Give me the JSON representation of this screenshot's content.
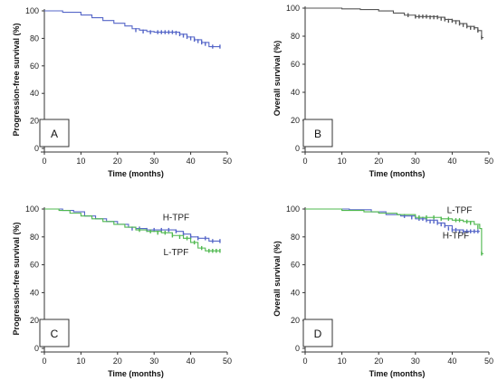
{
  "chart_data": [
    {
      "panel": "A",
      "type": "line",
      "step": true,
      "xlabel": "Time (months)",
      "ylabel": "Progression-free survival (%)",
      "xlim": [
        0,
        50
      ],
      "ylim": [
        0,
        100
      ],
      "xticks": [
        0,
        10,
        20,
        30,
        40,
        50
      ],
      "yticks": [
        0,
        20,
        40,
        60,
        80,
        100
      ],
      "grid": false,
      "annotations": [],
      "series": [
        {
          "name": "",
          "color": "#5566c8",
          "points": [
            [
              0,
              100
            ],
            [
              5,
              99
            ],
            [
              10,
              97
            ],
            [
              13,
              95
            ],
            [
              16,
              93
            ],
            [
              19,
              91
            ],
            [
              22,
              89
            ],
            [
              24,
              87
            ],
            [
              26,
              86
            ],
            [
              28,
              85
            ],
            [
              30,
              84.5
            ],
            [
              35,
              84.5
            ],
            [
              37,
              83
            ],
            [
              39,
              81
            ],
            [
              41,
              79
            ],
            [
              43,
              77
            ],
            [
              45,
              74
            ],
            [
              48,
              74
            ]
          ],
          "censored": [
            [
              25,
              86
            ],
            [
              27,
              85
            ],
            [
              29,
              84.5
            ],
            [
              31,
              84.5
            ],
            [
              32,
              84.5
            ],
            [
              33,
              84.5
            ],
            [
              34,
              84.5
            ],
            [
              35,
              84.5
            ],
            [
              36,
              84
            ],
            [
              37,
              83
            ],
            [
              38,
              82
            ],
            [
              39,
              81
            ],
            [
              40,
              80
            ],
            [
              41,
              79
            ],
            [
              42,
              78
            ],
            [
              43,
              77
            ],
            [
              44,
              76
            ],
            [
              46,
              74
            ],
            [
              48,
              74
            ]
          ]
        }
      ]
    },
    {
      "panel": "B",
      "type": "line",
      "step": true,
      "xlabel": "Time (months)",
      "ylabel": "Overall survival (%)",
      "xlim": [
        0,
        50
      ],
      "ylim": [
        0,
        100
      ],
      "xticks": [
        0,
        10,
        20,
        30,
        40,
        50
      ],
      "yticks": [
        0,
        20,
        40,
        60,
        80,
        100
      ],
      "grid": false,
      "annotations": [],
      "series": [
        {
          "name": "",
          "color": "#555555",
          "points": [
            [
              0,
              100
            ],
            [
              10,
              99.5
            ],
            [
              15,
              99
            ],
            [
              20,
              98
            ],
            [
              24,
              96.5
            ],
            [
              27,
              95
            ],
            [
              30,
              94
            ],
            [
              36,
              93.5
            ],
            [
              38,
              92
            ],
            [
              40,
              91
            ],
            [
              42,
              89
            ],
            [
              44,
              87
            ],
            [
              46,
              86
            ],
            [
              47,
              84
            ],
            [
              48,
              79
            ],
            [
              48.5,
              79
            ]
          ],
          "censored": [
            [
              28,
              95
            ],
            [
              30,
              94
            ],
            [
              31,
              94
            ],
            [
              32,
              94
            ],
            [
              33,
              94
            ],
            [
              34,
              93.5
            ],
            [
              35,
              93.5
            ],
            [
              36,
              93.5
            ],
            [
              37,
              92.5
            ],
            [
              38,
              92
            ],
            [
              39,
              91
            ],
            [
              40,
              91
            ],
            [
              41,
              90
            ],
            [
              42,
              89
            ],
            [
              43,
              88
            ],
            [
              44,
              87
            ],
            [
              45,
              86
            ],
            [
              46,
              86
            ],
            [
              47,
              84
            ],
            [
              48,
              79
            ]
          ]
        }
      ]
    },
    {
      "panel": "C",
      "type": "line",
      "step": true,
      "xlabel": "Time (months)",
      "ylabel": "Progression-free survival (%)",
      "xlim": [
        0,
        50
      ],
      "ylim": [
        0,
        100
      ],
      "xticks": [
        0,
        10,
        20,
        30,
        40,
        50
      ],
      "yticks": [
        0,
        20,
        40,
        60,
        80,
        100
      ],
      "grid": false,
      "annotations": [
        {
          "text": "H-TPF",
          "x": 36,
          "y": 92
        },
        {
          "text": "L-TPF",
          "x": 36,
          "y": 67
        }
      ],
      "series": [
        {
          "name": "H-TPF",
          "color": "#5566c8",
          "points": [
            [
              0,
              100
            ],
            [
              5,
              99
            ],
            [
              8,
              98
            ],
            [
              11,
              95
            ],
            [
              14,
              93
            ],
            [
              17,
              91
            ],
            [
              20,
              89
            ],
            [
              23,
              87
            ],
            [
              25,
              86
            ],
            [
              28,
              85
            ],
            [
              33,
              85
            ],
            [
              36,
              84
            ],
            [
              38,
              82
            ],
            [
              40,
              80
            ],
            [
              42,
              79
            ],
            [
              45,
              77
            ],
            [
              48,
              77
            ]
          ],
          "censored": [
            [
              24,
              86
            ],
            [
              26,
              86
            ],
            [
              28,
              85
            ],
            [
              30,
              85
            ],
            [
              32,
              85
            ],
            [
              34,
              85
            ],
            [
              36,
              84
            ],
            [
              38,
              82
            ],
            [
              40,
              80
            ],
            [
              42,
              79
            ],
            [
              44,
              79
            ],
            [
              46,
              77
            ],
            [
              48,
              77
            ]
          ]
        },
        {
          "name": "L-TPF",
          "color": "#4fb84f",
          "points": [
            [
              0,
              100
            ],
            [
              4,
              99
            ],
            [
              7,
              97
            ],
            [
              10,
              95
            ],
            [
              13,
              93
            ],
            [
              16,
              91
            ],
            [
              19,
              89
            ],
            [
              22,
              87
            ],
            [
              25,
              85
            ],
            [
              28,
              84
            ],
            [
              32,
              83
            ],
            [
              35,
              81
            ],
            [
              38,
              79
            ],
            [
              40,
              76
            ],
            [
              42,
              72
            ],
            [
              44,
              70
            ],
            [
              48,
              70
            ]
          ],
          "censored": [
            [
              26,
              85
            ],
            [
              29,
              84
            ],
            [
              31,
              83
            ],
            [
              33,
              83
            ],
            [
              35,
              81
            ],
            [
              37,
              80
            ],
            [
              39,
              79
            ],
            [
              41,
              76
            ],
            [
              43,
              72
            ],
            [
              45,
              70
            ],
            [
              46,
              70
            ],
            [
              47,
              70
            ],
            [
              48,
              70
            ]
          ]
        }
      ]
    },
    {
      "panel": "D",
      "type": "line",
      "step": true,
      "xlabel": "Time (months)",
      "ylabel": "Overall survival (%)",
      "xlim": [
        0,
        50
      ],
      "ylim": [
        0,
        100
      ],
      "xticks": [
        0,
        10,
        20,
        30,
        40,
        50
      ],
      "yticks": [
        0,
        20,
        40,
        60,
        80,
        100
      ],
      "grid": false,
      "annotations": [
        {
          "text": "L-TPF",
          "x": 42,
          "y": 97
        },
        {
          "text": "H-TPF",
          "x": 41,
          "y": 79
        }
      ],
      "series": [
        {
          "name": "H-TPF",
          "color": "#5566c8",
          "points": [
            [
              0,
              100
            ],
            [
              12,
              99.5
            ],
            [
              18,
              98
            ],
            [
              22,
              96
            ],
            [
              26,
              95
            ],
            [
              30,
              93
            ],
            [
              33,
              92
            ],
            [
              36,
              90
            ],
            [
              38,
              88
            ],
            [
              40,
              85
            ],
            [
              43,
              84
            ],
            [
              46,
              84
            ],
            [
              47.5,
              84
            ]
          ],
          "censored": [
            [
              27,
              95
            ],
            [
              29,
              94
            ],
            [
              31,
              93
            ],
            [
              32,
              93
            ],
            [
              33,
              92
            ],
            [
              34,
              91
            ],
            [
              35,
              91
            ],
            [
              36,
              90
            ],
            [
              37,
              89
            ],
            [
              38,
              88
            ],
            [
              39,
              86
            ],
            [
              40,
              85
            ],
            [
              41,
              85
            ],
            [
              42,
              84
            ],
            [
              43,
              84
            ],
            [
              44,
              84
            ],
            [
              45,
              84
            ],
            [
              46,
              84
            ],
            [
              47,
              84
            ]
          ]
        },
        {
          "name": "L-TPF",
          "color": "#4fb84f",
          "points": [
            [
              0,
              100
            ],
            [
              10,
              99
            ],
            [
              16,
              98
            ],
            [
              20,
              97
            ],
            [
              25,
              96
            ],
            [
              30,
              94
            ],
            [
              34,
              94
            ],
            [
              37,
              93
            ],
            [
              40,
              92
            ],
            [
              43,
              91
            ],
            [
              46,
              89
            ],
            [
              47.5,
              86
            ],
            [
              48,
              68
            ],
            [
              48.5,
              68
            ]
          ],
          "censored": [
            [
              31,
              94
            ],
            [
              33,
              94
            ],
            [
              35,
              94
            ],
            [
              37,
              93
            ],
            [
              39,
              93
            ],
            [
              41,
              92
            ],
            [
              42,
              92
            ],
            [
              44,
              91
            ],
            [
              45,
              90
            ],
            [
              47,
              87
            ],
            [
              48,
              68
            ]
          ]
        }
      ]
    }
  ]
}
